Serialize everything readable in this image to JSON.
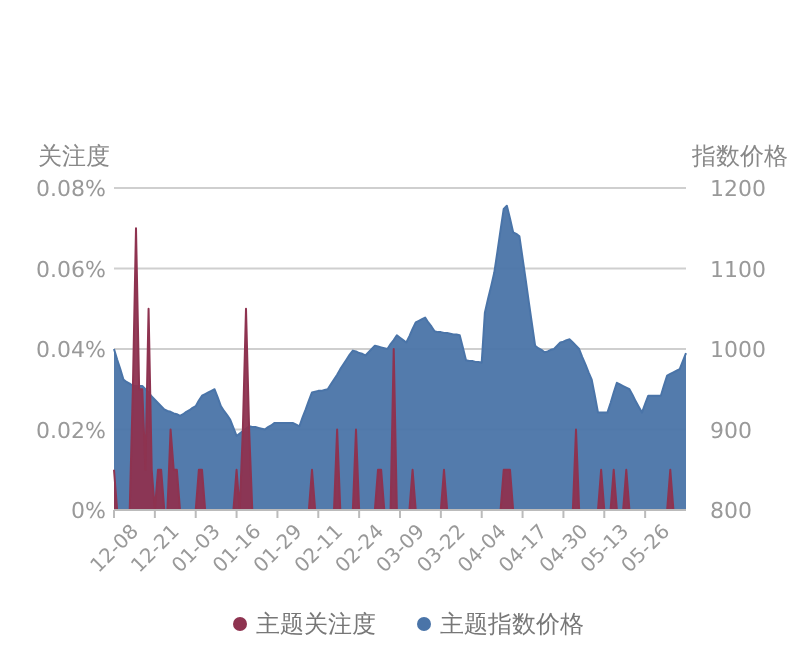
{
  "chart_data": {
    "type": "area",
    "ylabel": "关注度",
    "y2label": "指数价格",
    "categories": [
      "12-08",
      null,
      null,
      null,
      null,
      null,
      null,
      null,
      null,
      null,
      null,
      null,
      null,
      "12-21",
      null,
      null,
      null,
      null,
      null,
      null,
      null,
      null,
      null,
      null,
      null,
      null,
      "01-03",
      null,
      null,
      null,
      null,
      null,
      null,
      null,
      null,
      null,
      null,
      null,
      null,
      "01-16",
      null,
      null,
      null,
      null,
      null,
      null,
      null,
      null,
      null,
      null,
      null,
      null,
      "01-29",
      null,
      null,
      null,
      null,
      null,
      null,
      null,
      null,
      null,
      null,
      null,
      null,
      "02-11",
      null,
      null,
      null,
      null,
      null,
      null,
      null,
      null,
      null,
      null,
      null,
      null,
      "02-24",
      null,
      null,
      null,
      null,
      null,
      null,
      null,
      null,
      null,
      null,
      null,
      null,
      "03-09",
      null,
      null,
      null,
      null,
      null,
      null,
      null,
      null,
      null,
      null,
      null,
      null,
      "03-22",
      null,
      null,
      null,
      null,
      null,
      null,
      null,
      null,
      null,
      null,
      null,
      null,
      "04-04",
      null,
      null,
      null,
      null,
      null,
      null,
      null,
      null,
      null,
      null,
      null,
      null,
      "04-17",
      null,
      null,
      null,
      null,
      null,
      null,
      null,
      null,
      null,
      null,
      null,
      null,
      "04-30",
      null,
      null,
      null,
      null,
      null,
      null,
      null,
      null,
      null,
      null,
      null,
      null,
      "05-13",
      null,
      null,
      null,
      null,
      null,
      null,
      null,
      null,
      null,
      null,
      null,
      null,
      "05-26",
      null,
      null,
      null,
      null,
      null,
      null,
      null,
      null,
      null,
      null,
      null,
      null,
      null
    ],
    "ylim": [
      0,
      0.08
    ],
    "yticks": [
      {
        "value": 0,
        "label": "0%"
      },
      {
        "value": 0.02,
        "label": "0.02%"
      },
      {
        "value": 0.04,
        "label": "0.04%"
      },
      {
        "value": 0.06,
        "label": "0.06%"
      },
      {
        "value": 0.08,
        "label": "0.08%"
      }
    ],
    "y2lim": [
      800,
      1200
    ],
    "y2ticks": [
      800,
      900,
      1000,
      1100,
      1200
    ],
    "grid": "y",
    "legend": "bottom",
    "series": [
      {
        "name": "主题指数价格",
        "color": "#4a74a8",
        "axis": "y2",
        "values": [
          1000,
          987,
          975,
          962,
          959,
          957,
          954,
          954,
          954,
          954,
          950,
          946,
          941,
          937,
          933,
          929,
          925,
          923,
          922,
          920,
          919,
          917,
          919,
          922,
          924,
          927,
          929,
          936,
          942,
          944,
          946,
          948,
          950,
          940,
          929,
          923,
          918,
          912,
          902,
          892,
          895,
          898,
          901,
          904,
          903,
          903,
          902,
          901,
          900,
          903,
          905,
          908,
          908,
          908,
          908,
          908,
          908,
          908,
          906,
          904,
          915,
          925,
          936,
          946,
          947,
          948,
          948,
          949,
          950,
          956,
          962,
          968,
          975,
          981,
          987,
          993,
          998,
          997,
          995,
          994,
          992,
          996,
          1000,
          1004,
          1003,
          1002,
          1001,
          1000,
          1006,
          1011,
          1017,
          1014,
          1011,
          1008,
          1016,
          1025,
          1033,
          1035,
          1037,
          1039,
          1033,
          1028,
          1022,
          1021,
          1021,
          1020,
          1020,
          1019,
          1018,
          1018,
          1017,
          1002,
          986,
          985,
          985,
          984,
          984,
          983,
          1045,
          1062,
          1078,
          1095,
          1121,
          1148,
          1174,
          1178,
          1162,
          1145,
          1143,
          1140,
          1113,
          1086,
          1058,
          1031,
          1004,
          1001,
          999,
          996,
          997,
          999,
          1000,
          1004,
          1008,
          1009,
          1011,
          1012,
          1008,
          1004,
          1000,
          990,
          981,
          971,
          962,
          942,
          921,
          921,
          921,
          921,
          933,
          946,
          958,
          956,
          954,
          952,
          950,
          943,
          935,
          928,
          921,
          932,
          942,
          942,
          942,
          942,
          942,
          955,
          967,
          969,
          971,
          973,
          975,
          985,
          995
        ]
      },
      {
        "name": "主题关注度",
        "color": "#8e3350",
        "values": [
          0.01,
          0,
          0,
          0,
          0,
          0,
          0.03,
          0.07,
          0.03,
          0.03,
          0.01,
          0.05,
          0.01,
          0,
          0.01,
          0.01,
          0,
          0,
          0.02,
          0.01,
          0.01,
          0,
          0,
          0,
          0,
          0,
          0,
          0.01,
          0.01,
          0,
          0,
          0,
          0,
          0,
          0,
          0,
          0,
          0,
          0,
          0.01,
          0,
          0.02,
          0.05,
          0.02,
          0,
          0,
          0,
          0,
          0,
          0,
          0,
          0,
          0,
          0,
          0,
          0,
          0,
          0,
          0,
          0,
          0,
          0,
          0,
          0.01,
          0,
          0,
          0,
          0,
          0,
          0,
          0,
          0.02,
          0,
          0,
          0,
          0,
          0,
          0.02,
          0,
          0,
          0,
          0,
          0,
          0,
          0.01,
          0.01,
          0,
          0,
          0,
          0.04,
          0,
          0,
          0,
          0,
          0,
          0.01,
          0,
          0,
          0,
          0,
          0,
          0,
          0,
          0,
          0,
          0.01,
          0,
          0,
          0,
          0,
          0,
          0,
          0,
          0,
          0,
          0,
          0,
          0,
          0,
          0,
          0,
          0,
          0,
          0,
          0.01,
          0.01,
          0.01,
          0,
          0,
          0,
          0,
          0,
          0,
          0,
          0,
          0,
          0,
          0,
          0,
          0,
          0,
          0,
          0,
          0,
          0,
          0,
          0,
          0.02,
          0,
          0,
          0,
          0,
          0,
          0,
          0,
          0.01,
          0,
          0,
          0,
          0.01,
          0,
          0,
          0,
          0.01,
          0,
          0,
          0,
          0,
          0,
          0,
          0,
          0,
          0,
          0,
          0,
          0,
          0,
          0.01,
          0,
          0,
          0,
          0,
          0
        ]
      }
    ]
  }
}
